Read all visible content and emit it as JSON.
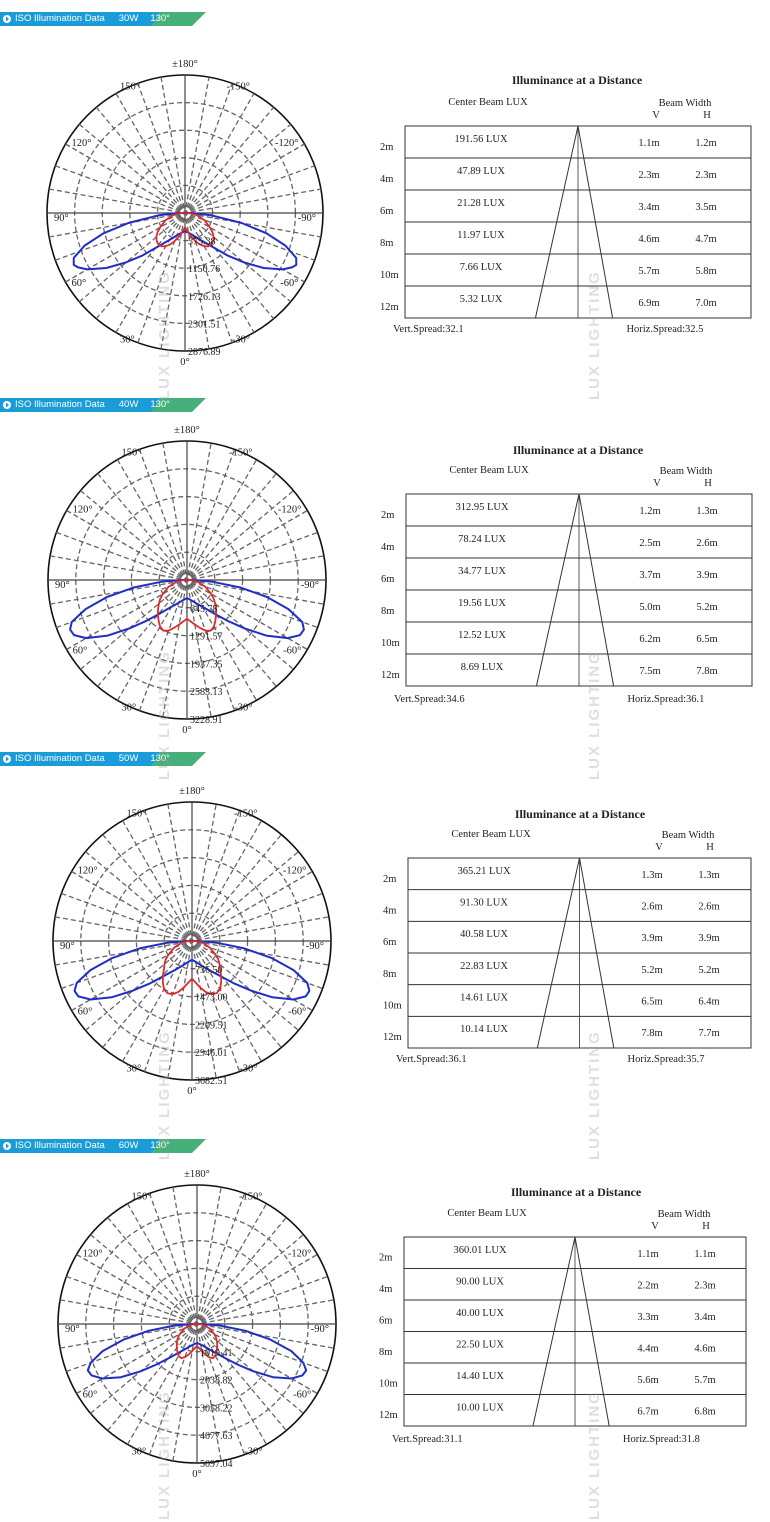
{
  "watermark": "LUX LIGHTING",
  "colors": {
    "banner_blue": "#1a9cd8",
    "banner_green": "#46b07a",
    "curve_c0": "#1f2fc4",
    "curve_c90": "#e02a2a",
    "grid": "#666666"
  },
  "angle_labels": [
    "±180°",
    "-150°",
    "150°",
    "-120°",
    "120°",
    "-90°",
    "90°",
    "-60°",
    "60°",
    "-30°",
    "30°",
    "0°"
  ],
  "table_headers": {
    "title": "Illuminance at a Distance",
    "center_lux": "Center Beam LUX",
    "beam_width": "Beam Width",
    "v": "V",
    "h": "H"
  },
  "sections": [
    {
      "banner": {
        "label": "ISO Illumination  Data",
        "power": "30W",
        "angle": "130°"
      },
      "polar": {
        "rings": [
          "575.38",
          "1150.76",
          "1726.13",
          "2301.51",
          "2876.89"
        ],
        "max": 2876.89
      },
      "chart_data": {
        "type": "polar",
        "rings": [
          575.38,
          1150.76,
          1726.13,
          2301.51,
          2876.89
        ],
        "series": [
          {
            "angles": [
              0,
              10,
              20,
              30,
              40,
              45,
              50,
              55,
              60,
              63,
              65,
              68,
              72,
              76,
              80,
              85,
              90
            ],
            "values": [
              380,
              420,
              500,
              650,
              950,
              1250,
              1600,
              2000,
              2350,
              2500,
              2560,
              2500,
              2200,
              1750,
              1200,
              550,
              120
            ]
          },
          {
            "angles": [
              0,
              10,
              15,
              20,
              25,
              30,
              35,
              40,
              45,
              50,
              55,
              60,
              70,
              80,
              90
            ],
            "values": [
              300,
              420,
              520,
              620,
              720,
              800,
              850,
              860,
              830,
              780,
              700,
              600,
              430,
              250,
              80
            ]
          }
        ]
      },
      "table": {
        "rows": [
          {
            "dist": "2m",
            "lux": "191.56 LUX",
            "v": "1.1m",
            "h": "1.2m"
          },
          {
            "dist": "4m",
            "lux": "47.89 LUX",
            "v": "2.3m",
            "h": "2.3m"
          },
          {
            "dist": "6m",
            "lux": "21.28 LUX",
            "v": "3.4m",
            "h": "3.5m"
          },
          {
            "dist": "8m",
            "lux": "11.97 LUX",
            "v": "4.6m",
            "h": "4.7m"
          },
          {
            "dist": "10m",
            "lux": "7.66 LUX",
            "v": "5.7m",
            "h": "5.8m"
          },
          {
            "dist": "12m",
            "lux": "5.32 LUX",
            "v": "6.9m",
            "h": "7.0m"
          }
        ],
        "vert_spread": "Vert.Spread:32.1",
        "horiz_spread": "Horiz.Spread:32.5"
      }
    },
    {
      "banner": {
        "label": "ISO Illumination  Data",
        "power": "40W",
        "angle": "130°"
      },
      "polar": {
        "rings": [
          "645.78",
          "1291.57",
          "1937.35",
          "2583.13",
          "3228.91"
        ],
        "max": 3228.91
      },
      "chart_data": {
        "type": "polar",
        "rings": [
          645.78,
          1291.57,
          1937.35,
          2583.13,
          3228.91
        ],
        "series": [
          {
            "angles": [
              0,
              10,
              20,
              30,
              40,
              45,
              50,
              55,
              60,
              64,
              67,
              70,
              74,
              78,
              82,
              86,
              90
            ],
            "values": [
              420,
              470,
              560,
              720,
              1050,
              1350,
              1750,
              2250,
              2700,
              2920,
              2950,
              2850,
              2450,
              1900,
              1250,
              600,
              120
            ]
          },
          {
            "angles": [
              0,
              10,
              15,
              20,
              25,
              30,
              35,
              40,
              45,
              50,
              55,
              60,
              70,
              80,
              90
            ],
            "values": [
              900,
              1050,
              1150,
              1250,
              1300,
              1250,
              1150,
              1050,
              950,
              850,
              760,
              650,
              450,
              250,
              80
            ]
          }
        ]
      },
      "table": {
        "rows": [
          {
            "dist": "2m",
            "lux": "312.95 LUX",
            "v": "1.2m",
            "h": "1.3m"
          },
          {
            "dist": "4m",
            "lux": "78.24 LUX",
            "v": "2.5m",
            "h": "2.6m"
          },
          {
            "dist": "6m",
            "lux": "34.77 LUX",
            "v": "3.7m",
            "h": "3.9m"
          },
          {
            "dist": "8m",
            "lux": "19.56 LUX",
            "v": "5.0m",
            "h": "5.2m"
          },
          {
            "dist": "10m",
            "lux": "12.52 LUX",
            "v": "6.2m",
            "h": "6.5m"
          },
          {
            "dist": "12m",
            "lux": "8.69 LUX",
            "v": "7.5m",
            "h": "7.8m"
          }
        ],
        "vert_spread": "Vert.Spread:34.6",
        "horiz_spread": "Horiz.Spread:36.1"
      }
    },
    {
      "banner": {
        "label": "ISO Illumination  Data",
        "power": "50W",
        "angle": "130°"
      },
      "polar": {
        "rings": [
          "736.50",
          "1473.00",
          "2209.51",
          "2946.01",
          "3682.51"
        ],
        "max": 3682.51
      },
      "chart_data": {
        "type": "polar",
        "rings": [
          736.5,
          1473.0,
          2209.51,
          2946.01,
          3682.51
        ],
        "series": [
          {
            "angles": [
              0,
              10,
              20,
              30,
              40,
              45,
              50,
              55,
              60,
              64,
              67,
              70,
              74,
              78,
              82,
              86,
              90
            ],
            "values": [
              500,
              560,
              680,
              880,
              1250,
              1600,
              2050,
              2600,
              3100,
              3350,
              3380,
              3250,
              2800,
              2150,
              1400,
              650,
              130
            ]
          },
          {
            "angles": [
              0,
              10,
              15,
              20,
              25,
              30,
              35,
              40,
              45,
              50,
              55,
              60,
              70,
              80,
              90
            ],
            "values": [
              1000,
              1250,
              1400,
              1500,
              1530,
              1480,
              1350,
              1200,
              1050,
              950,
              850,
              720,
              500,
              280,
              90
            ]
          }
        ]
      },
      "table": {
        "rows": [
          {
            "dist": "2m",
            "lux": "365.21 LUX",
            "v": "1.3m",
            "h": "1.3m"
          },
          {
            "dist": "4m",
            "lux": "91.30 LUX",
            "v": "2.6m",
            "h": "2.6m"
          },
          {
            "dist": "6m",
            "lux": "40.58 LUX",
            "v": "3.9m",
            "h": "3.9m"
          },
          {
            "dist": "8m",
            "lux": "22.83 LUX",
            "v": "5.2m",
            "h": "5.2m"
          },
          {
            "dist": "10m",
            "lux": "14.61 LUX",
            "v": "6.5m",
            "h": "6.4m"
          },
          {
            "dist": "12m",
            "lux": "10.14 LUX",
            "v": "7.8m",
            "h": "7.7m"
          }
        ],
        "vert_spread": "Vert.Spread:36.1",
        "horiz_spread": "Horiz.Spread:35.7"
      }
    },
    {
      "banner": {
        "label": "ISO Illumination  Data",
        "power": "60W",
        "angle": "130°"
      },
      "polar": {
        "rings": [
          "1019.41",
          "2038.82",
          "3058.22",
          "4077.63",
          "5097.04"
        ],
        "max": 5097.04
      },
      "chart_data": {
        "type": "polar",
        "rings": [
          1019.41,
          2038.82,
          3058.22,
          4077.63,
          5097.04
        ],
        "series": [
          {
            "angles": [
              0,
              10,
              20,
              30,
              40,
              45,
              50,
              55,
              60,
              64,
              67,
              70,
              74,
              78,
              82,
              86,
              90
            ],
            "values": [
              700,
              760,
              900,
              1150,
              1650,
              2100,
              2700,
              3400,
              4000,
              4300,
              4350,
              4150,
              3600,
              2750,
              1800,
              850,
              170
            ]
          },
          {
            "angles": [
              0,
              10,
              15,
              20,
              25,
              30,
              35,
              40,
              45,
              50,
              55,
              60,
              70,
              80,
              90
            ],
            "values": [
              800,
              1000,
              1150,
              1300,
              1380,
              1350,
              1250,
              1150,
              1050,
              950,
              850,
              720,
              500,
              280,
              90
            ]
          }
        ]
      },
      "table": {
        "rows": [
          {
            "dist": "2m",
            "lux": "360.01 LUX",
            "v": "1.1m",
            "h": "1.1m"
          },
          {
            "dist": "4m",
            "lux": "90.00 LUX",
            "v": "2.2m",
            "h": "2.3m"
          },
          {
            "dist": "6m",
            "lux": "40.00 LUX",
            "v": "3.3m",
            "h": "3.4m"
          },
          {
            "dist": "8m",
            "lux": "22.50 LUX",
            "v": "4.4m",
            "h": "4.6m"
          },
          {
            "dist": "10m",
            "lux": "14.40 LUX",
            "v": "5.6m",
            "h": "5.7m"
          },
          {
            "dist": "12m",
            "lux": "10.00 LUX",
            "v": "6.7m",
            "h": "6.8m"
          }
        ],
        "vert_spread": "Vert.Spread:31.1",
        "horiz_spread": "Horiz.Spread:31.8"
      }
    }
  ]
}
